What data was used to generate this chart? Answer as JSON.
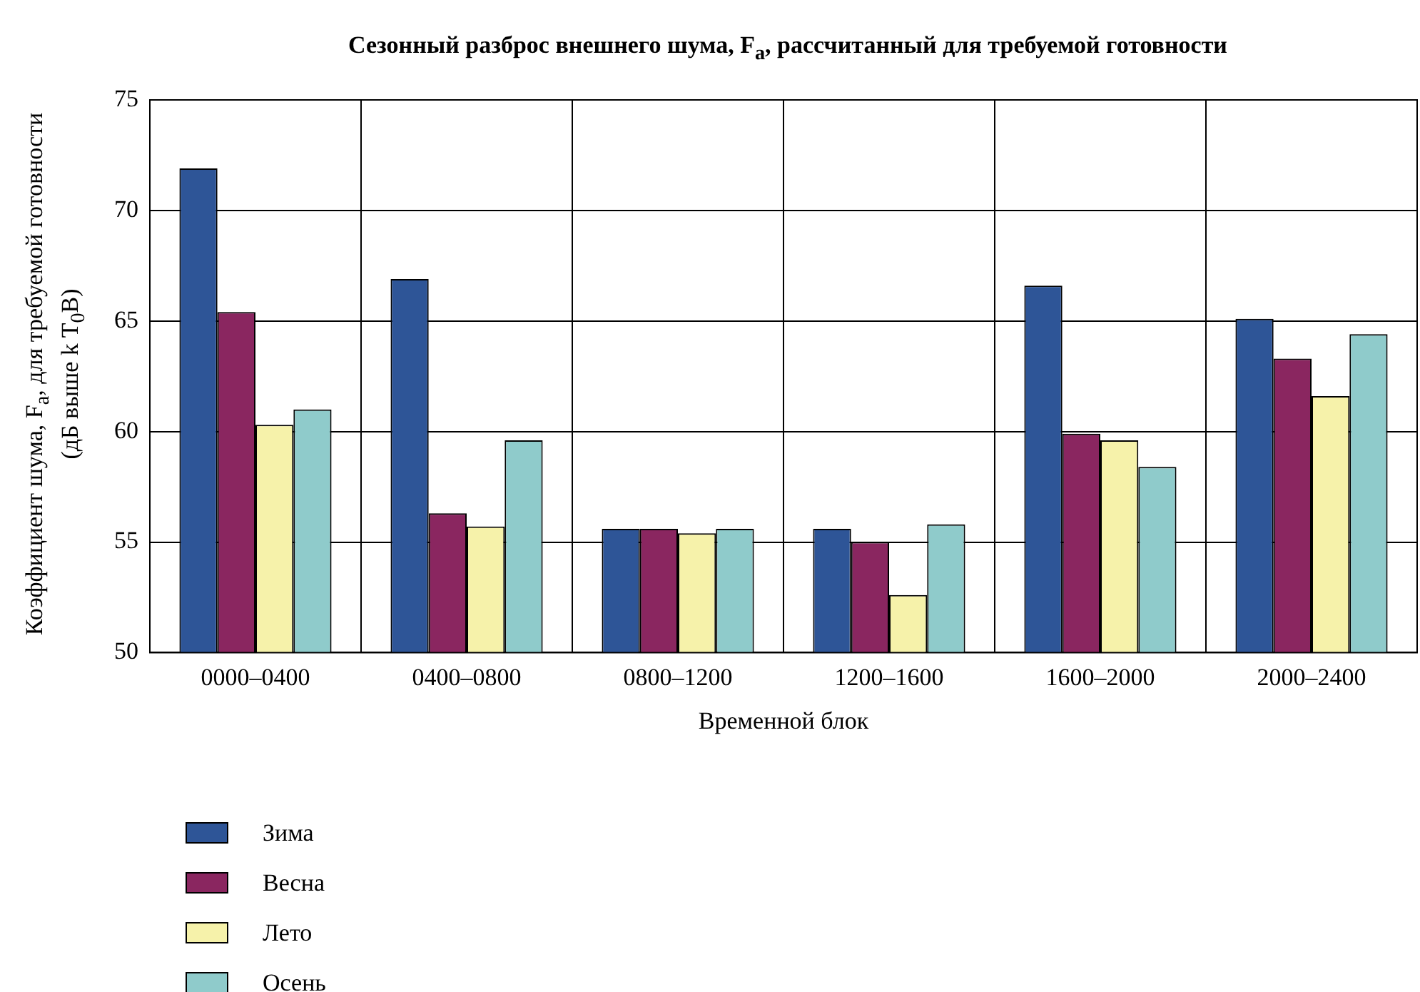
{
  "chart_data": {
    "type": "bar",
    "title": "Сезонный разброс внешнего шума, F$_{a}$, рассчитанный для требуемой готовности",
    "xlabel": "Временной блок",
    "ylabel": "Коэффициент шума, F$_{a}$, для требуемой готовности\n(дБ выше  k T$_{0}$B)",
    "categories": [
      "0000–0400",
      "0400–0800",
      "0800–1200",
      "1200–1600",
      "1600–2000",
      "2000–2400"
    ],
    "series": [
      {
        "name": "Зима",
        "color": "#2e5597",
        "values": [
          71.9,
          66.9,
          55.6,
          55.6,
          66.6,
          65.1
        ]
      },
      {
        "name": "Весна",
        "color": "#8a2660",
        "values": [
          65.4,
          56.3,
          55.6,
          55.0,
          59.9,
          63.3
        ]
      },
      {
        "name": "Лето",
        "color": "#f6f2aa",
        "values": [
          60.3,
          55.7,
          55.4,
          52.6,
          59.6,
          61.6
        ]
      },
      {
        "name": "Осень",
        "color": "#8fcbcb",
        "values": [
          61.0,
          59.6,
          55.6,
          55.8,
          58.4,
          64.4
        ]
      }
    ],
    "ylim": [
      50,
      75
    ],
    "yticks": [
      50,
      55,
      60,
      65,
      70,
      75
    ],
    "grid": true,
    "legend": "bottom left"
  }
}
